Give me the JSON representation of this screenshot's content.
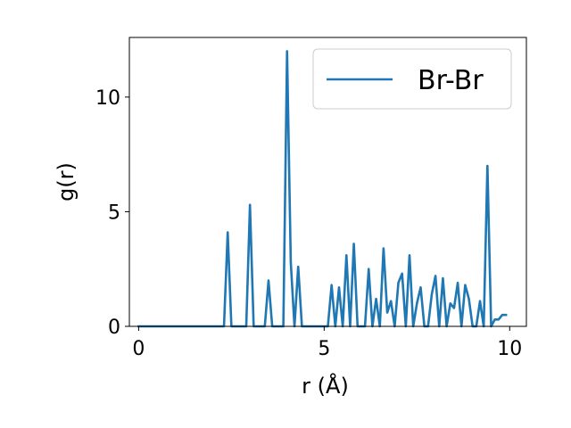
{
  "chart_data": {
    "type": "line",
    "title": "",
    "xlabel": "r (Å)",
    "ylabel": "g(r)",
    "xlim": [
      -0.25,
      10.45
    ],
    "ylim": [
      0,
      12.6
    ],
    "xticks": [
      0,
      5,
      10
    ],
    "yticks": [
      0,
      5,
      10
    ],
    "grid": false,
    "legend_position": "top-right",
    "series": [
      {
        "name": "Br-Br",
        "color": "#1f77b4",
        "x": [
          0.0,
          0.1,
          0.2,
          0.3,
          0.4,
          0.5,
          0.6,
          0.7,
          0.8,
          0.9,
          1.0,
          1.1,
          1.2,
          1.3,
          1.4,
          1.5,
          1.6,
          1.7,
          1.8,
          1.9,
          2.0,
          2.1,
          2.2,
          2.3,
          2.4,
          2.5,
          2.6,
          2.7,
          2.8,
          2.9,
          3.0,
          3.1,
          3.2,
          3.3,
          3.4,
          3.5,
          3.6,
          3.7,
          3.8,
          3.9,
          4.0,
          4.1,
          4.2,
          4.3,
          4.4,
          4.5,
          4.6,
          4.7,
          4.8,
          4.9,
          5.0,
          5.1,
          5.2,
          5.3,
          5.4,
          5.5,
          5.6,
          5.7,
          5.8,
          5.9,
          6.0,
          6.1,
          6.2,
          6.3,
          6.4,
          6.5,
          6.6,
          6.7,
          6.8,
          6.9,
          7.0,
          7.1,
          7.2,
          7.3,
          7.4,
          7.5,
          7.6,
          7.7,
          7.8,
          7.9,
          8.0,
          8.1,
          8.2,
          8.3,
          8.4,
          8.5,
          8.6,
          8.7,
          8.8,
          8.9,
          9.0,
          9.1,
          9.2,
          9.3,
          9.4,
          9.5,
          9.6,
          9.7,
          9.8,
          9.9
        ],
        "y": [
          0,
          0,
          0,
          0,
          0,
          0,
          0,
          0,
          0,
          0,
          0,
          0,
          0,
          0,
          0,
          0,
          0,
          0,
          0,
          0,
          0,
          0,
          0,
          0,
          4.1,
          0,
          0,
          0,
          0,
          0,
          5.3,
          0,
          0,
          0,
          0,
          2.0,
          0,
          0,
          0,
          0,
          12.0,
          2.8,
          0,
          2.6,
          0,
          0,
          0,
          0,
          0,
          0,
          0,
          0,
          1.8,
          0,
          1.7,
          0,
          3.1,
          0,
          3.6,
          0,
          0,
          0,
          2.5,
          0,
          1.2,
          0,
          3.4,
          0.6,
          1.1,
          0,
          1.9,
          2.3,
          0,
          3.1,
          0,
          1.0,
          1.7,
          0,
          0,
          1.4,
          2.2,
          0,
          2.1,
          0,
          1.0,
          0.8,
          1.9,
          0,
          1.8,
          1.2,
          0,
          0,
          1.1,
          0,
          7.0,
          0,
          0.3,
          0.3,
          0.5,
          0.5
        ]
      }
    ]
  }
}
